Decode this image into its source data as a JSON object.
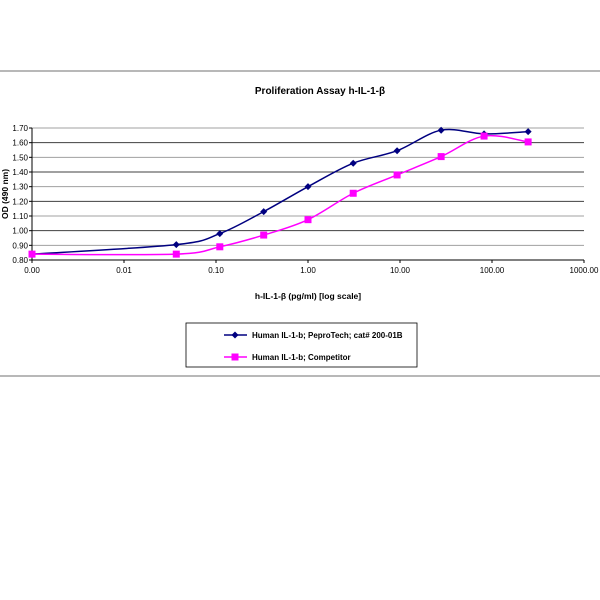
{
  "chart_data": {
    "type": "line",
    "title": "Proliferation Assay h-IL-1-β",
    "xlabel": "h-IL-1-β (pg/ml) [log scale]",
    "ylabel": "OD (490 nm)",
    "xscale": "log",
    "xlim": [
      0.001,
      1000
    ],
    "ylim": [
      0.8,
      1.7
    ],
    "x_tick_labels": [
      "0.00",
      "0.01",
      "0.10",
      "1.00",
      "10.00",
      "100.00",
      "1000.00"
    ],
    "y_tick_labels": [
      "0.80",
      "0.90",
      "1.00",
      "1.10",
      "1.20",
      "1.30",
      "1.40",
      "1.50",
      "1.60",
      "1.70"
    ],
    "grid": "horizontal",
    "legend_position": "bottom",
    "x": [
      0.001,
      0.037,
      0.11,
      0.33,
      1.0,
      3.1,
      9.3,
      28,
      82,
      247
    ],
    "series": [
      {
        "name": "Human IL-1-b; PeproTech; cat# 200-01B",
        "color": "#000080",
        "marker": "diamond",
        "values": [
          0.84,
          0.905,
          0.98,
          1.13,
          1.3,
          1.46,
          1.545,
          1.685,
          1.66,
          1.675
        ]
      },
      {
        "name": "Human IL-1-b; Competitor",
        "color": "#ff00ff",
        "marker": "square",
        "values": [
          0.84,
          0.84,
          0.89,
          0.97,
          1.075,
          1.255,
          1.38,
          1.505,
          1.645,
          1.605
        ]
      }
    ]
  }
}
